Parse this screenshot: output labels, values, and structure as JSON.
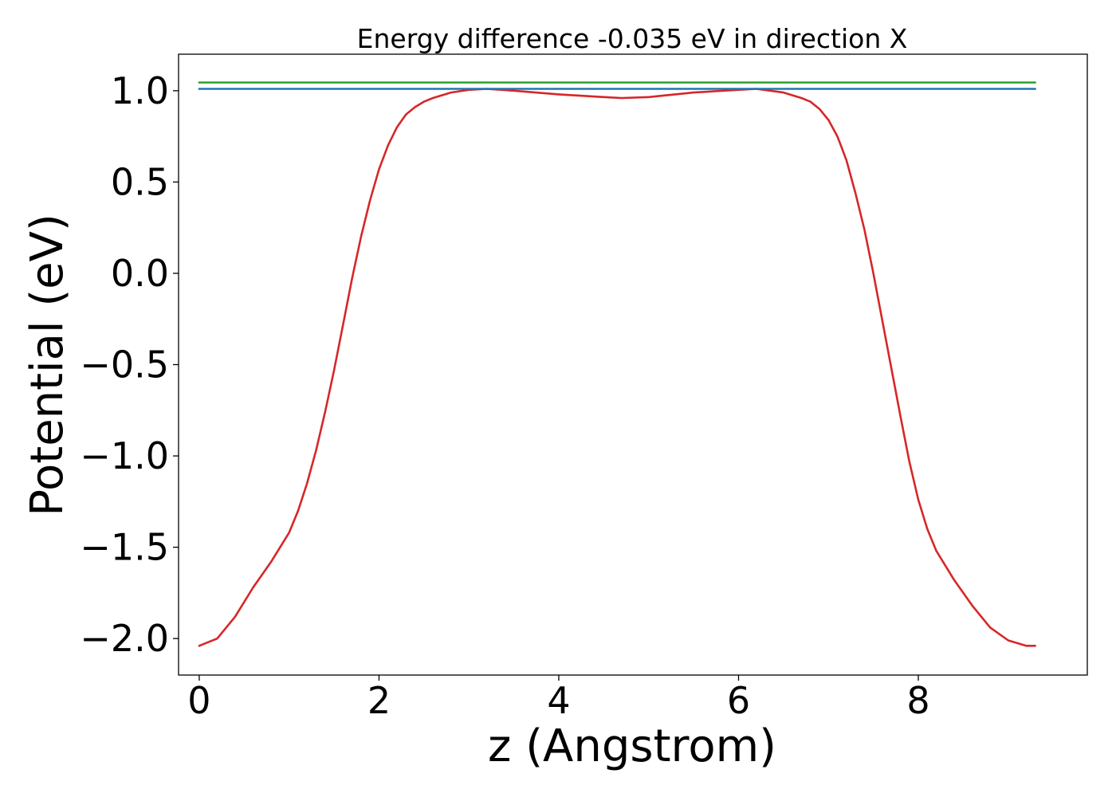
{
  "chart_data": {
    "type": "line",
    "title": "Energy difference -0.035 eV in direction X",
    "xlabel": "z (Angstrom)",
    "ylabel": "Potential (eV)",
    "xlim": [
      -0.23,
      9.88
    ],
    "ylim": [
      -2.2,
      1.2
    ],
    "xticks": [
      0,
      2,
      4,
      6,
      8
    ],
    "xtick_labels": [
      "0",
      "2",
      "4",
      "6",
      "8"
    ],
    "yticks": [
      1.0,
      0.5,
      0.0,
      -0.5,
      -1.0,
      -1.5,
      -2.0
    ],
    "ytick_labels": [
      "1.0",
      "0.5",
      "0.0",
      "−0.5",
      "−1.0",
      "−1.5",
      "−2.0"
    ],
    "grid": false,
    "series": [
      {
        "color": "#d62728",
        "x": [
          0.0,
          0.2,
          0.4,
          0.6,
          0.8,
          1.0,
          1.1,
          1.2,
          1.3,
          1.4,
          1.5,
          1.6,
          1.7,
          1.8,
          1.9,
          2.0,
          2.1,
          2.2,
          2.3,
          2.4,
          2.5,
          2.6,
          2.8,
          3.0,
          3.2,
          3.5,
          4.0,
          4.5,
          4.7,
          5.0,
          5.5,
          6.0,
          6.2,
          6.5,
          6.7,
          6.8,
          6.9,
          7.0,
          7.1,
          7.2,
          7.3,
          7.4,
          7.5,
          7.6,
          7.7,
          7.8,
          7.9,
          8.0,
          8.1,
          8.2,
          8.4,
          8.6,
          8.8,
          9.0,
          9.2,
          9.3
        ],
        "y": [
          -2.04,
          -2.0,
          -1.88,
          -1.72,
          -1.58,
          -1.42,
          -1.3,
          -1.15,
          -0.97,
          -0.76,
          -0.53,
          -0.28,
          -0.03,
          0.2,
          0.4,
          0.57,
          0.7,
          0.8,
          0.87,
          0.91,
          0.94,
          0.96,
          0.99,
          1.005,
          1.01,
          1.0,
          0.98,
          0.965,
          0.96,
          0.965,
          0.99,
          1.005,
          1.01,
          0.99,
          0.96,
          0.94,
          0.9,
          0.84,
          0.75,
          0.62,
          0.44,
          0.24,
          0.0,
          -0.26,
          -0.52,
          -0.78,
          -1.03,
          -1.24,
          -1.4,
          -1.52,
          -1.68,
          -1.82,
          -1.94,
          -2.01,
          -2.04,
          -2.04
        ]
      },
      {
        "color": "#2ca02c",
        "x": [
          0.0,
          9.3
        ],
        "y": [
          1.045,
          1.045
        ]
      },
      {
        "color": "#1f77b4",
        "x": [
          0.0,
          9.3
        ],
        "y": [
          1.01,
          1.01
        ]
      }
    ]
  }
}
